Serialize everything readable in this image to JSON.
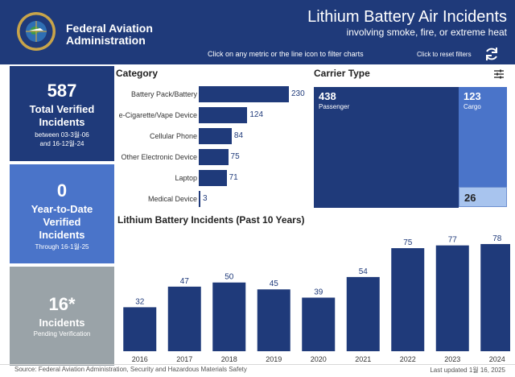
{
  "header": {
    "org_name_line1": "Federal Aviation",
    "org_name_line2": "Administration",
    "seal_text": "FEDERAL AVIATION ADMINISTRATION",
    "title": "Lithium Battery Air Incidents",
    "subtitle": "involving smoke, fire, or extreme heat",
    "hint": "Click on any metric or the line icon to filter charts",
    "reset_label": "Click to reset filters",
    "reset_icon": "refresh-icon"
  },
  "tiles": {
    "total": {
      "value": "587",
      "label_line1": "Total Verified",
      "label_line2": "Incidents",
      "range_line1": "between 03-3월-06",
      "range_line2": "and 16-12월-24"
    },
    "ytd": {
      "value": "0",
      "label_line1": "Year-to-Date",
      "label_line2": "Verified",
      "label_line3": "Incidents",
      "through": "Through 16-1월-25"
    },
    "pending": {
      "value": "16*",
      "label": "Incidents",
      "note": "Pending Verification"
    }
  },
  "colors": {
    "header": "#1f3a7a",
    "bar": "#1f3a7a",
    "tile_ytd": "#4a74c9",
    "tile_pending": "#9aa3a8",
    "cargo": "#4a74c9",
    "other": "#a8c4ee"
  },
  "category": {
    "title": "Category",
    "items": [
      {
        "label": "Battery Pack/Battery",
        "value": "230"
      },
      {
        "label": "e-Cigarette/Vape Device",
        "value": "124"
      },
      {
        "label": "Cellular Phone",
        "value": "84"
      },
      {
        "label": "Other Electronic Device",
        "value": "75"
      },
      {
        "label": "Laptop",
        "value": "71"
      },
      {
        "label": "Medical Device",
        "value": "3"
      }
    ]
  },
  "carrier": {
    "title": "Carrier Type",
    "filter_icon": "filter-sliders-icon",
    "passenger": {
      "value": "438",
      "label": "Passenger"
    },
    "cargo": {
      "value": "123",
      "label": "Cargo"
    },
    "other": {
      "value": "26"
    }
  },
  "footer": {
    "source": "Source: Federal Aviation Administration, Security and Hazardous Materials Safety",
    "updated": "Last updated 1월 16, 2025"
  },
  "chart_data": [
    {
      "type": "bar",
      "orientation": "horizontal",
      "title": "Category",
      "categories": [
        "Battery Pack/Battery",
        "e-Cigarette/Vape Device",
        "Cellular Phone",
        "Other Electronic Device",
        "Laptop",
        "Medical Device"
      ],
      "values": [
        230,
        124,
        84,
        75,
        71,
        3
      ],
      "grid": false
    },
    {
      "type": "bar",
      "title": "Lithium Battery Incidents (Past 10 Years)",
      "categories": [
        "2016",
        "2017",
        "2018",
        "2019",
        "2020",
        "2021",
        "2022",
        "2023",
        "2024"
      ],
      "values": [
        32,
        47,
        50,
        45,
        39,
        54,
        75,
        77,
        78
      ],
      "xlabel": "",
      "ylabel": "",
      "ylim": [
        0,
        85
      ],
      "grid": false
    }
  ]
}
